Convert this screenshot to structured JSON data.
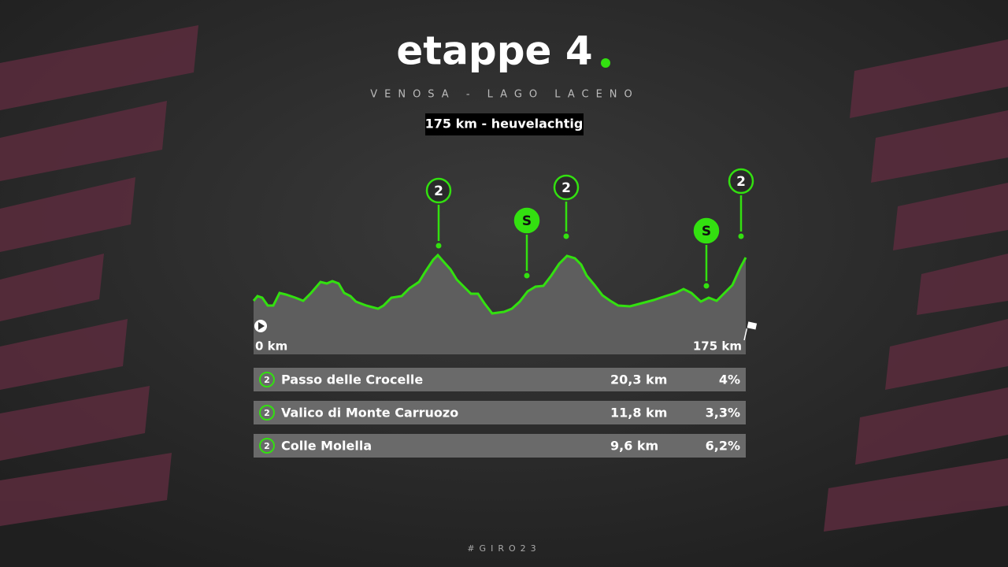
{
  "header": {
    "title": "etappe 4",
    "route": "VENOSA - LAGO LACENO",
    "info": "175 km - heuvelachtig"
  },
  "profile": {
    "start": "0 km",
    "end": "175 km",
    "markers": [
      "2",
      "S",
      "2",
      "S",
      "2"
    ]
  },
  "climbs": {
    "rows": [
      [
        "2",
        "Passo delle Crocelle",
        "20,3 km",
        "4%"
      ],
      [
        "2",
        "Valico di Monte Carruozo",
        "11,8 km",
        "3,3%"
      ],
      [
        "2",
        "Colle Molella",
        "9,6 km",
        "6,2%"
      ]
    ]
  },
  "footer": "#GIRO23"
}
